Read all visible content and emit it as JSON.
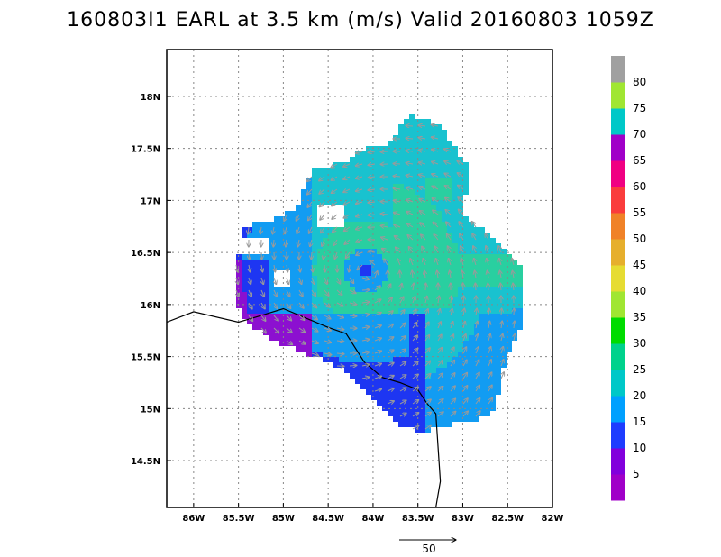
{
  "title": "160803I1 EARL at 3.5 km (m/s) Valid 20160803 1059Z",
  "map": {
    "lon_range": [
      -86.3,
      -82.0
    ],
    "lat_range": [
      14.05,
      18.45
    ],
    "lon_ticks": [
      {
        "v": -86.0,
        "label": "86W"
      },
      {
        "v": -85.5,
        "label": "85.5W"
      },
      {
        "v": -85.0,
        "label": "85W"
      },
      {
        "v": -84.5,
        "label": "84.5W"
      },
      {
        "v": -84.0,
        "label": "84W"
      },
      {
        "v": -83.5,
        "label": "83.5W"
      },
      {
        "v": -83.0,
        "label": "83W"
      },
      {
        "v": -82.5,
        "label": "82.5W"
      },
      {
        "v": -82.0,
        "label": "82W"
      }
    ],
    "lat_ticks": [
      {
        "v": 14.5,
        "label": "14.5N"
      },
      {
        "v": 15.0,
        "label": "15N"
      },
      {
        "v": 15.5,
        "label": "15.5N"
      },
      {
        "v": 16.0,
        "label": "16N"
      },
      {
        "v": 16.5,
        "label": "16.5N"
      },
      {
        "v": 17.0,
        "label": "17N"
      },
      {
        "v": 17.5,
        "label": "17.5N"
      },
      {
        "v": 18.0,
        "label": "18N"
      }
    ],
    "grid": true,
    "storm_center": {
      "lon": -84.08,
      "lat": 16.32
    },
    "coastline": [
      [
        -86.3,
        15.83
      ],
      [
        -86.0,
        15.93
      ],
      [
        -85.5,
        15.83
      ],
      [
        -85.3,
        15.88
      ],
      [
        -85.0,
        15.96
      ],
      [
        -84.5,
        15.78
      ],
      [
        -84.3,
        15.72
      ],
      [
        -84.1,
        15.45
      ],
      [
        -83.9,
        15.3
      ],
      [
        -83.7,
        15.25
      ],
      [
        -83.5,
        15.18
      ],
      [
        -83.4,
        15.05
      ],
      [
        -83.3,
        14.95
      ],
      [
        -83.25,
        14.3
      ],
      [
        -83.3,
        14.05
      ]
    ]
  },
  "colorbar": {
    "colors": [
      "#a000c8",
      "#8200dc",
      "#1e3cff",
      "#00a0ff",
      "#00c8c8",
      "#00d28c",
      "#00dc00",
      "#a0e632",
      "#e6dc32",
      "#e6af2d",
      "#f08228",
      "#fa3c3c",
      "#f00082",
      "#a000c8",
      "#00c8c8",
      "#a0e632",
      "#a0a0a0"
    ],
    "labels": [
      "5",
      "10",
      "15",
      "20",
      "25",
      "30",
      "35",
      "40",
      "45",
      "50",
      "55",
      "60",
      "65",
      "70",
      "75",
      "80"
    ]
  },
  "reference_vector": {
    "label": "50",
    "value": 50
  }
}
